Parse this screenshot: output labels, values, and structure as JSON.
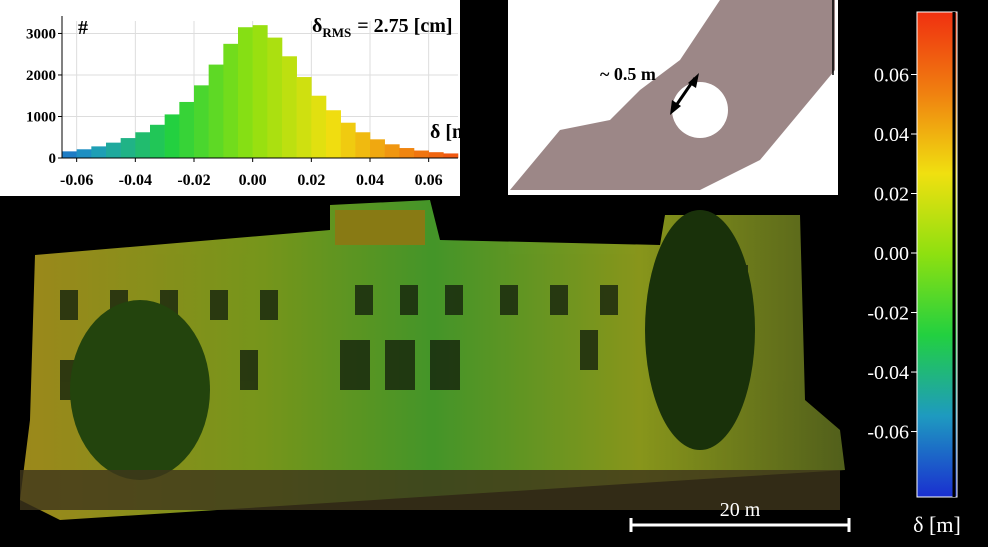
{
  "chart_data": [
    {
      "type": "histogram",
      "title": "δ",
      "title_subscript": "RMS",
      "title_suffix": "= 2.75 [cm]",
      "y_label": "#",
      "x_label": "δ [m]",
      "bins": [
        -0.065,
        -0.06,
        -0.055,
        -0.05,
        -0.045,
        -0.04,
        -0.035,
        -0.03,
        -0.025,
        -0.02,
        -0.015,
        -0.01,
        -0.005,
        0,
        0.005,
        0.01,
        0.015,
        0.02,
        0.025,
        0.03,
        0.035,
        0.04,
        0.045,
        0.05,
        0.055,
        0.06,
        0.065,
        0.07
      ],
      "values": [
        160,
        210,
        280,
        370,
        480,
        620,
        800,
        1050,
        1350,
        1750,
        2250,
        2750,
        3150,
        3200,
        2900,
        2450,
        1950,
        1500,
        1150,
        850,
        620,
        450,
        330,
        240,
        180,
        140,
        110
      ],
      "xlim": [
        -0.065,
        0.07
      ],
      "ylim": [
        0,
        3300
      ],
      "xticks": [
        -0.06,
        -0.04,
        -0.02,
        {
          "value": 0,
          "label": "0.00"
        },
        0.02,
        0.04,
        0.06
      ],
      "yticks": [
        0,
        1000,
        2000,
        3000
      ],
      "grid": true
    },
    {
      "type": "colorbar",
      "label": "δ [m]",
      "ylim": [
        -0.082,
        0.081
      ],
      "yticks": [
        -0.06,
        -0.04,
        -0.02,
        {
          "value": 0,
          "label": "0.00"
        },
        0.02,
        0.04,
        0.06
      ],
      "colormap": [
        "#1a2fd0",
        "#1e9ac0",
        "#22d040",
        "#8ee010",
        "#f0e010",
        "#f08010",
        "#f03010"
      ]
    }
  ],
  "image": {
    "annotations": [
      "~ 0.5 m",
      "20 m"
    ]
  }
}
